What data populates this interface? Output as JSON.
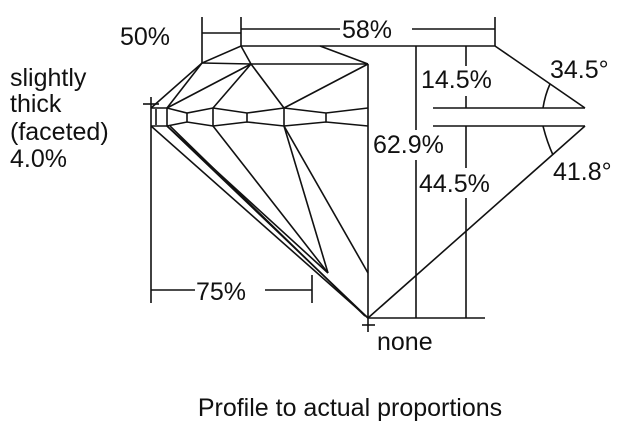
{
  "labels": {
    "table_pct": "58%",
    "star_pct": "50%",
    "girdle_line1": "slightly",
    "girdle_line2": "thick",
    "girdle_line3": "(faceted)",
    "girdle_pct": "4.0%",
    "crown_height": "14.5%",
    "crown_angle": "34.5°",
    "total_depth": "62.9%",
    "pavilion_depth": "44.5%",
    "pavilion_angle": "41.8°",
    "lower_half_pct": "75%",
    "culet": "none"
  },
  "caption": "Profile to actual proportions"
}
